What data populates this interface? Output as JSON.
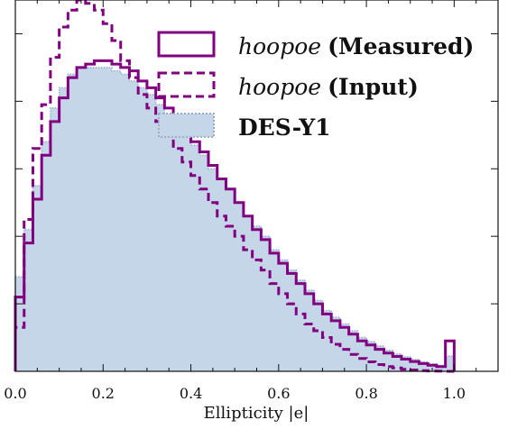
{
  "chart_data": {
    "type": "histogram",
    "xlabel": "Ellipticity |e|",
    "xlim": [
      0.0,
      1.1
    ],
    "ylim": [
      0,
      1.1
    ],
    "x_ticks": [
      "0.0",
      "0.2",
      "0.4",
      "0.6",
      "0.8",
      "1.0"
    ],
    "y_tick_labels_shown": false,
    "bin_width": 0.02,
    "bin_starts": [
      0.0,
      0.02,
      0.04,
      0.06,
      0.08,
      0.1,
      0.12,
      0.14,
      0.16,
      0.18,
      0.2,
      0.22,
      0.24,
      0.26,
      0.28,
      0.3,
      0.32,
      0.34,
      0.36,
      0.38,
      0.4,
      0.42,
      0.44,
      0.46,
      0.48,
      0.5,
      0.52,
      0.54,
      0.56,
      0.58,
      0.6,
      0.62,
      0.64,
      0.66,
      0.68,
      0.7,
      0.72,
      0.74,
      0.76,
      0.78,
      0.8,
      0.82,
      0.84,
      0.86,
      0.88,
      0.9,
      0.92,
      0.94,
      0.96,
      0.98
    ],
    "legend_position": "top-right",
    "series": [
      {
        "name": "hoopoe",
        "name_suffix": "(Measured)",
        "style": "step-solid",
        "color": "#800080",
        "values": [
          0.22,
          0.38,
          0.51,
          0.64,
          0.74,
          0.81,
          0.87,
          0.9,
          0.91,
          0.92,
          0.92,
          0.91,
          0.9,
          0.89,
          0.86,
          0.84,
          0.81,
          0.78,
          0.75,
          0.71,
          0.68,
          0.65,
          0.61,
          0.57,
          0.54,
          0.5,
          0.46,
          0.42,
          0.39,
          0.35,
          0.32,
          0.29,
          0.26,
          0.23,
          0.2,
          0.17,
          0.15,
          0.13,
          0.11,
          0.09,
          0.078,
          0.065,
          0.054,
          0.044,
          0.036,
          0.029,
          0.023,
          0.018,
          0.014,
          0.09
        ]
      },
      {
        "name": "hoopoe",
        "name_suffix": "(Input)",
        "style": "step-dashed",
        "color": "#800080",
        "values": [
          0.13,
          0.45,
          0.66,
          0.79,
          0.93,
          1.02,
          1.07,
          1.1,
          1.09,
          1.07,
          1.03,
          0.98,
          0.92,
          0.87,
          0.82,
          0.78,
          0.74,
          0.7,
          0.66,
          0.62,
          0.58,
          0.54,
          0.5,
          0.46,
          0.43,
          0.4,
          0.36,
          0.33,
          0.3,
          0.26,
          0.23,
          0.2,
          0.17,
          0.14,
          0.12,
          0.1,
          0.08,
          0.065,
          0.05,
          0.038,
          0.028,
          0.02,
          0.014,
          0.01,
          0.006,
          0.004,
          0.002,
          0.001,
          0.0005,
          0.0
        ]
      },
      {
        "name": "DES-Y1",
        "name_suffix": "",
        "style": "step-filled",
        "color": "#c5d6e8",
        "edgecolor": "#9aaecb",
        "values": [
          0.28,
          0.42,
          0.55,
          0.68,
          0.78,
          0.84,
          0.88,
          0.9,
          0.9,
          0.9,
          0.9,
          0.89,
          0.88,
          0.86,
          0.84,
          0.82,
          0.79,
          0.76,
          0.73,
          0.7,
          0.67,
          0.64,
          0.6,
          0.57,
          0.54,
          0.5,
          0.46,
          0.43,
          0.4,
          0.36,
          0.33,
          0.3,
          0.27,
          0.24,
          0.21,
          0.18,
          0.16,
          0.14,
          0.12,
          0.1,
          0.088,
          0.075,
          0.062,
          0.052,
          0.043,
          0.035,
          0.028,
          0.022,
          0.017,
          0.045
        ]
      }
    ]
  }
}
